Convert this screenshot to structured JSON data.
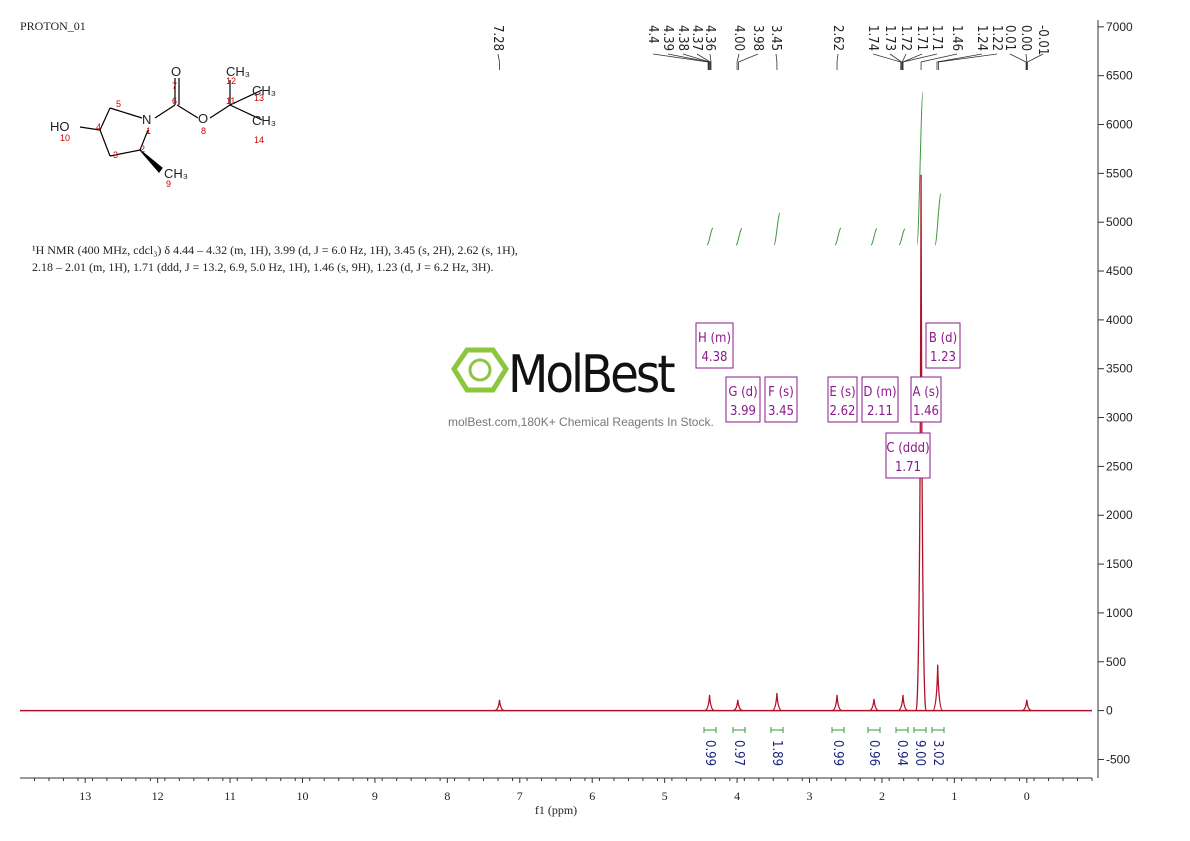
{
  "title": "PROTON_01",
  "molecule": {
    "atoms": [
      "HO",
      "N",
      "O",
      "O",
      "CH₃",
      "CH₃",
      "CH₃",
      "CH₃"
    ],
    "numbers": [
      "1",
      "2",
      "3",
      "4",
      "5",
      "6",
      "7",
      "8",
      "9",
      "10",
      "11",
      "12",
      "13",
      "14"
    ]
  },
  "description": [
    "¹H NMR (400 MHz, cdcl₃) δ 4.44 – 4.32 (m, 1H), 3.99 (d, J = 6.0 Hz, 1H), 3.45 (s, 2H), 2.62 (s, 1H),",
    "2.18 – 2.01 (m, 1H), 1.71 (ddd, J = 13.2, 6.9, 5.0 Hz, 1H), 1.46 (s, 9H), 1.23 (d, J = 6.2 Hz, 3H)."
  ],
  "watermark": {
    "brand": "MolBest",
    "tagline": "molBest.com,180K+ Chemical Reagents In Stock."
  },
  "peak_labels": [
    7.28,
    4.4,
    4.39,
    4.38,
    4.37,
    4.36,
    {
      "value": 4,
      "label": "4.00"
    },
    3.98,
    3.45,
    2.62,
    1.74,
    1.73,
    1.72,
    1.71,
    1.71,
    1.46,
    1.24,
    1.22,
    0.01,
    {
      "value": 0,
      "label": "0.00"
    },
    -0.01
  ],
  "multiplets": [
    {
      "label": "H (m)",
      "shift": 4.38
    },
    {
      "label": "G (d)",
      "shift": 3.99
    },
    {
      "label": "F (s)",
      "shift": 3.45
    },
    {
      "label": "E (s)",
      "shift": 2.62
    },
    {
      "label": "D (m)",
      "shift": 2.11
    },
    {
      "label": "A (s)",
      "shift": 1.46
    },
    {
      "label": "B (d)",
      "shift": 1.23
    },
    {
      "label": "C (ddd)",
      "shift": 1.71
    }
  ],
  "integrals": {
    "values": [
      0.99,
      0.97,
      1.89,
      0.99,
      0.96,
      0.94,
      9,
      3.02
    ],
    "value_labels": [
      "0.99",
      "0.97",
      "1.89",
      "0.99",
      "0.96",
      "0.94",
      "9.00",
      "3.02"
    ]
  },
  "chart_data": {
    "type": "nmr",
    "x_label": "f1 (ppm)",
    "xlim": [
      13.9,
      -0.9
    ],
    "xticks": [
      13,
      12,
      11,
      10,
      9,
      8,
      7,
      6,
      5,
      4,
      3,
      2,
      1,
      0
    ],
    "ylim": [
      -690,
      7070
    ],
    "yticks": [
      -500,
      0,
      500,
      1000,
      1500,
      2000,
      2500,
      3000,
      3500,
      4000,
      4500,
      5000,
      5500,
      6000,
      6500,
      7000
    ],
    "series": [
      {
        "color": "#b0102a",
        "x": [
          7.28,
          4.38,
          3.99,
          3.45,
          2.62,
          2.11,
          1.71,
          1.46,
          1.23,
          0
        ],
        "values": [
          110,
          160,
          110,
          180,
          160,
          120,
          160,
          5486,
          470,
          110
        ]
      }
    ]
  }
}
